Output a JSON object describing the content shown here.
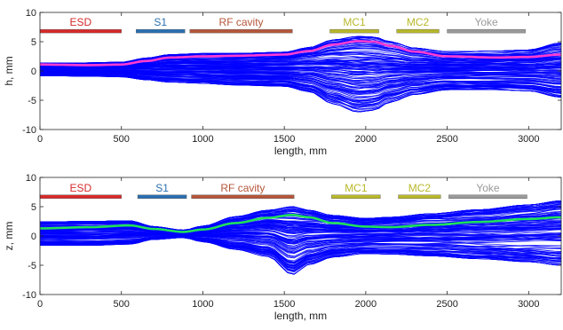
{
  "chart_data": [
    {
      "type": "line",
      "xlabel": "length, mm",
      "ylabel": "h, mm",
      "xlim": [
        0,
        3200
      ],
      "ylim": [
        -10,
        10
      ],
      "xticks": [
        0,
        500,
        1000,
        1500,
        2000,
        2500,
        3000
      ],
      "yticks": [
        -10,
        -5,
        0,
        5,
        10
      ],
      "grid": false,
      "segments": [
        {
          "name": "ESD",
          "start": 0,
          "end": 500,
          "y": 6.8,
          "color": "#d62a2a"
        },
        {
          "name": "S1",
          "start": 590,
          "end": 890,
          "y": 6.8,
          "color": "#2a6fb0"
        },
        {
          "name": "RF cavity",
          "start": 920,
          "end": 1550,
          "y": 6.8,
          "color": "#b5563a"
        },
        {
          "name": "MC1",
          "start": 1780,
          "end": 2080,
          "y": 6.8,
          "color": "#b8b82a"
        },
        {
          "name": "MC2",
          "start": 2190,
          "end": 2450,
          "y": 6.8,
          "color": "#b8b82a"
        },
        {
          "name": "Yoke",
          "start": 2500,
          "end": 2980,
          "y": 6.8,
          "color": "#9a9a9a"
        }
      ],
      "envelope": {
        "x": [
          0,
          300,
          500,
          650,
          800,
          1000,
          1200,
          1500,
          1650,
          1800,
          1950,
          2050,
          2150,
          2300,
          2500,
          2800,
          3000,
          3200
        ],
        "upper": [
          1.4,
          1.4,
          1.5,
          2.2,
          2.8,
          3.0,
          3.0,
          3.2,
          4.0,
          5.3,
          5.9,
          5.8,
          5.0,
          3.9,
          3.3,
          3.4,
          3.6,
          4.8
        ],
        "lower": [
          -0.8,
          -0.9,
          -1.0,
          -1.5,
          -1.9,
          -2.1,
          -2.4,
          -2.6,
          -3.5,
          -5.6,
          -7.0,
          -6.7,
          -5.3,
          -4.0,
          -3.2,
          -3.2,
          -3.4,
          -4.5
        ],
        "color": "#0000ff"
      },
      "series": [
        {
          "color": "#ff3cd2",
          "x": [
            0,
            300,
            500,
            650,
            800,
            1000,
            1200,
            1500,
            1650,
            1800,
            1950,
            2050,
            2150,
            2300,
            2500,
            2800,
            3000,
            3200
          ],
          "y": [
            1.1,
            1.0,
            1.1,
            1.7,
            2.3,
            2.5,
            2.6,
            2.8,
            3.4,
            4.5,
            5.1,
            5.0,
            4.3,
            3.3,
            2.5,
            2.3,
            2.4,
            2.8
          ]
        }
      ]
    },
    {
      "type": "line",
      "xlabel": "length, mm",
      "ylabel": "z, mm",
      "xlim": [
        0,
        3200
      ],
      "ylim": [
        -10,
        10
      ],
      "xticks": [
        0,
        500,
        1000,
        1500,
        2000,
        2500,
        3000
      ],
      "yticks": [
        -10,
        -5,
        0,
        5,
        10
      ],
      "grid": false,
      "segments": [
        {
          "name": "ESD",
          "start": 0,
          "end": 500,
          "y": 6.7,
          "color": "#d62a2a"
        },
        {
          "name": "S1",
          "start": 600,
          "end": 900,
          "y": 6.7,
          "color": "#2a6fb0"
        },
        {
          "name": "RF cavity",
          "start": 930,
          "end": 1560,
          "y": 6.7,
          "color": "#b5563a"
        },
        {
          "name": "MC1",
          "start": 1790,
          "end": 2090,
          "y": 6.7,
          "color": "#b8b82a"
        },
        {
          "name": "MC2",
          "start": 2200,
          "end": 2460,
          "y": 6.7,
          "color": "#b8b82a"
        },
        {
          "name": "Yoke",
          "start": 2510,
          "end": 2990,
          "y": 6.7,
          "color": "#9a9a9a"
        }
      ],
      "envelope": {
        "x": [
          0,
          300,
          550,
          700,
          880,
          1000,
          1200,
          1400,
          1550,
          1650,
          1800,
          2000,
          2150,
          2400,
          2700,
          3000,
          3200
        ],
        "upper": [
          2.4,
          2.5,
          2.6,
          1.6,
          1.0,
          1.7,
          3.3,
          4.4,
          5.0,
          4.4,
          3.5,
          3.0,
          3.2,
          3.8,
          4.5,
          5.3,
          6.0
        ],
        "lower": [
          -1.6,
          -1.6,
          -1.4,
          -0.6,
          -0.3,
          -1.0,
          -2.3,
          -3.5,
          -6.6,
          -4.9,
          -3.6,
          -3.0,
          -3.1,
          -3.4,
          -3.9,
          -4.4,
          -5.0
        ],
        "color": "#0000ff"
      },
      "series": [
        {
          "color": "#1fe05a",
          "x": [
            0,
            300,
            550,
            700,
            880,
            1000,
            1200,
            1400,
            1550,
            1650,
            1800,
            2000,
            2150,
            2400,
            2700,
            3000,
            3200
          ],
          "y": [
            1.3,
            1.5,
            1.8,
            1.2,
            0.7,
            1.1,
            2.2,
            3.1,
            3.6,
            3.2,
            2.2,
            1.6,
            1.5,
            1.9,
            2.4,
            2.9,
            3.2
          ]
        }
      ]
    }
  ]
}
